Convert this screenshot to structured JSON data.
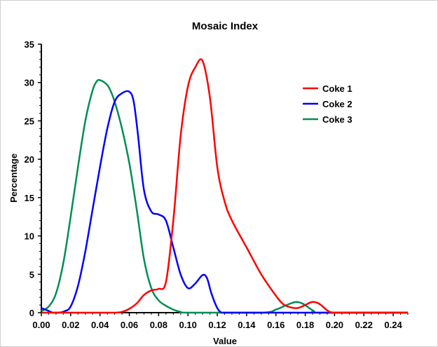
{
  "chart_data": {
    "type": "line",
    "title": "Mosaic Index",
    "xlabel": "Value",
    "ylabel": "Percentage",
    "xlim": [
      0,
      0.25
    ],
    "ylim": [
      0,
      35
    ],
    "x_ticks": [
      "0.00",
      "0.02",
      "0.04",
      "0.06",
      "0.08",
      "0.10",
      "0.12",
      "0.14",
      "0.16",
      "0.18",
      "0.20",
      "0.22",
      "0.24"
    ],
    "y_ticks": [
      "0",
      "5",
      "10",
      "15",
      "20",
      "25",
      "30",
      "35"
    ],
    "grid": false,
    "legend_position": "top-right",
    "series": [
      {
        "name": "Coke 1",
        "color": "#ff0000",
        "x": [
          0,
          0.02,
          0.04,
          0.05,
          0.055,
          0.06,
          0.065,
          0.07,
          0.075,
          0.08,
          0.085,
          0.09,
          0.095,
          0.1,
          0.105,
          0.11,
          0.115,
          0.12,
          0.125,
          0.13,
          0.14,
          0.15,
          0.16,
          0.165,
          0.17,
          0.175,
          0.18,
          0.185,
          0.19,
          0.195,
          0.2,
          0.22,
          0.25
        ],
        "y": [
          0,
          0,
          0,
          0,
          0.1,
          0.5,
          1.2,
          2.3,
          2.9,
          3.1,
          4,
          12,
          23,
          29.5,
          32,
          32.8,
          28,
          19,
          14.5,
          12,
          8.5,
          5,
          2.2,
          1.1,
          0.7,
          0.6,
          1,
          1.4,
          1.1,
          0.3,
          0,
          0,
          0
        ]
      },
      {
        "name": "Coke 2",
        "color": "#0000ff",
        "x": [
          0,
          0.004,
          0.008,
          0.012,
          0.016,
          0.02,
          0.025,
          0.03,
          0.035,
          0.04,
          0.045,
          0.05,
          0.055,
          0.06,
          0.063,
          0.066,
          0.07,
          0.075,
          0.08,
          0.085,
          0.09,
          0.095,
          0.1,
          0.105,
          0.11,
          0.113,
          0.116,
          0.12,
          0.123,
          0.126,
          0.14,
          0.25
        ],
        "y": [
          0.6,
          0.3,
          0,
          0,
          0.2,
          0.8,
          3.5,
          8,
          13.5,
          19,
          24,
          27.5,
          28.6,
          28.8,
          27.5,
          23,
          16,
          13.2,
          12.8,
          12,
          8.5,
          5,
          3.2,
          3.8,
          4.9,
          4.5,
          2.5,
          0.6,
          0,
          0,
          0,
          0
        ]
      },
      {
        "name": "Coke 3",
        "color": "#008e55",
        "x": [
          0,
          0.005,
          0.01,
          0.015,
          0.02,
          0.025,
          0.03,
          0.035,
          0.038,
          0.04,
          0.043,
          0.046,
          0.05,
          0.055,
          0.06,
          0.065,
          0.07,
          0.075,
          0.08,
          0.085,
          0.09,
          0.095,
          0.1,
          0.15,
          0.16,
          0.165,
          0.17,
          0.174,
          0.178,
          0.182,
          0.186,
          0.19,
          0.25
        ],
        "y": [
          0.2,
          0.8,
          2.5,
          6.5,
          12.5,
          19,
          25,
          29,
          30.2,
          30.3,
          30,
          29.4,
          27.5,
          24,
          19.5,
          13.5,
          7,
          3.2,
          1.6,
          0.9,
          0.4,
          0.1,
          0,
          0,
          0.4,
          0.8,
          1.2,
          1.4,
          1.2,
          0.7,
          0.2,
          0,
          0
        ]
      }
    ]
  }
}
